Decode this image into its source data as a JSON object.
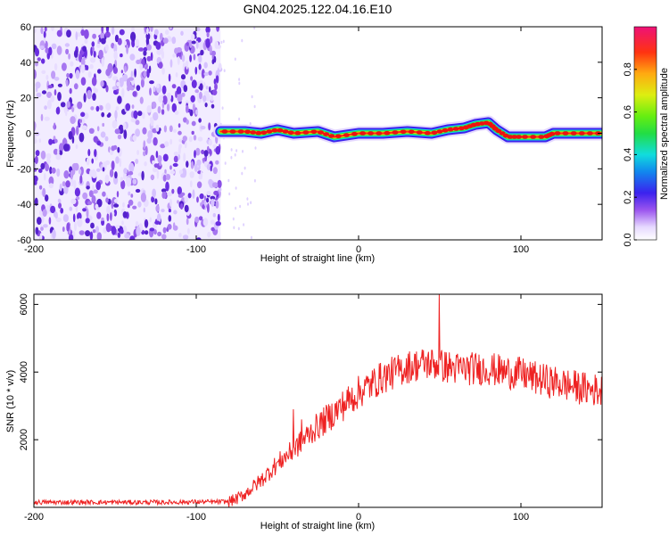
{
  "title": "GN04.2025.122.04.16.E10",
  "chart_data": [
    {
      "type": "heatmap",
      "xlabel": "Height of straight line (km)",
      "ylabel": "Frequency (Hz)",
      "xlim": [
        -200,
        150
      ],
      "ylim": [
        -60,
        60
      ],
      "xticks": [
        -200,
        -100,
        0,
        100
      ],
      "yticks": [
        -60,
        -40,
        -20,
        0,
        20,
        40,
        60
      ],
      "colorbar": {
        "label": "Normalized spectral amplitude",
        "range": [
          0,
          1
        ],
        "ticks": [
          "0.0",
          "0.2",
          "0.4",
          "0.6",
          "0.8"
        ]
      },
      "noise_region": {
        "x_from": -200,
        "x_to": -85
      },
      "ridge": [
        {
          "x": -85,
          "y": 1
        },
        {
          "x": -70,
          "y": 1
        },
        {
          "x": -60,
          "y": 0
        },
        {
          "x": -50,
          "y": 2
        },
        {
          "x": -40,
          "y": 0
        },
        {
          "x": -25,
          "y": 1
        },
        {
          "x": -15,
          "y": -2
        },
        {
          "x": 0,
          "y": 0
        },
        {
          "x": 15,
          "y": 0
        },
        {
          "x": 30,
          "y": 1
        },
        {
          "x": 45,
          "y": 0
        },
        {
          "x": 55,
          "y": 2
        },
        {
          "x": 65,
          "y": 3
        },
        {
          "x": 72,
          "y": 5
        },
        {
          "x": 80,
          "y": 6
        },
        {
          "x": 85,
          "y": 2
        },
        {
          "x": 92,
          "y": -2
        },
        {
          "x": 100,
          "y": -2
        },
        {
          "x": 115,
          "y": -2
        },
        {
          "x": 120,
          "y": 0
        },
        {
          "x": 135,
          "y": 0
        },
        {
          "x": 150,
          "y": 0
        }
      ]
    },
    {
      "type": "line",
      "xlabel": "Height of straight line (km)",
      "ylabel": "SNR (10 * v/v)",
      "xlim": [
        -200,
        150
      ],
      "ylim": [
        0,
        6300
      ],
      "xticks": [
        -200,
        -100,
        0,
        100
      ],
      "yticks": [
        2000,
        4000,
        6000
      ],
      "color": "#ee2222",
      "series": [
        {
          "x": [
            -200,
            -180,
            -160,
            -140,
            -120,
            -100,
            -90,
            -80,
            -75,
            -70,
            -65,
            -60,
            -55,
            -50,
            -45,
            -40,
            -35,
            -30,
            -25,
            -20,
            -15,
            -10,
            -5,
            0,
            5,
            10,
            15,
            20,
            25,
            30,
            35,
            40,
            45,
            50,
            55,
            60,
            70,
            80,
            90,
            100,
            110,
            120,
            130,
            140,
            150
          ],
          "y": [
            150,
            150,
            150,
            150,
            150,
            160,
            160,
            170,
            250,
            400,
            600,
            800,
            1050,
            1300,
            1500,
            1700,
            1950,
            2200,
            2400,
            2600,
            2800,
            3000,
            3200,
            3400,
            3550,
            3700,
            3850,
            3950,
            4050,
            4150,
            4200,
            4250,
            4250,
            4200,
            4150,
            4100,
            4100,
            4100,
            4000,
            3950,
            3800,
            3700,
            3600,
            3500,
            3450
          ]
        }
      ],
      "spikes": [
        {
          "x": 49.5,
          "y": 6300
        },
        {
          "x": -40,
          "y": 2900
        },
        {
          "x": -49,
          "y": 1400
        },
        {
          "x": -35,
          "y": 2600
        }
      ]
    }
  ]
}
